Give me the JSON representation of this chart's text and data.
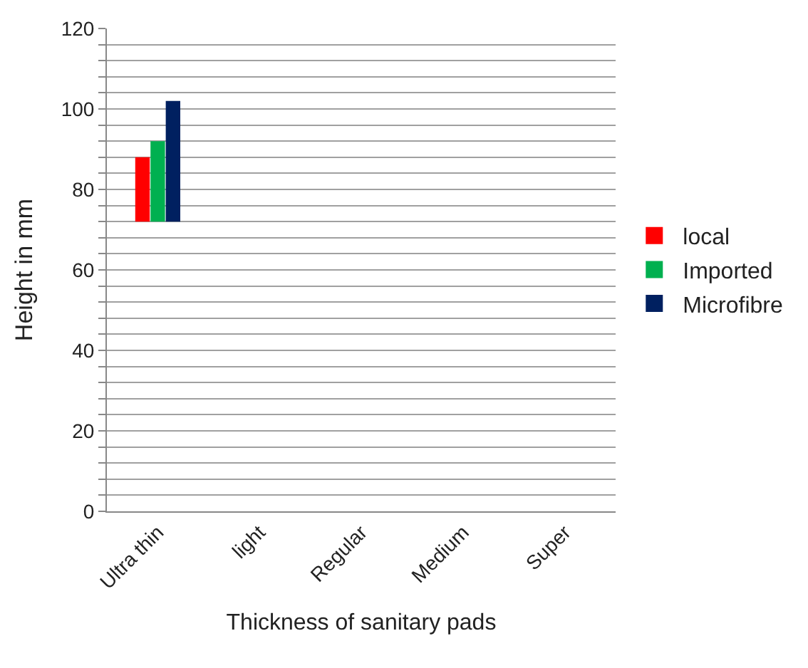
{
  "chart_data": {
    "type": "bar",
    "xlabel": "Thickness of sanitary pads",
    "ylabel": "Height in mm",
    "categories": [
      "Ultra thin",
      "light",
      "Regular",
      "Medium",
      "Super"
    ],
    "series": [
      {
        "name": "local",
        "color": "#ff0000",
        "values": [
          16,
          null,
          null,
          null,
          null
        ],
        "base": [
          72,
          null,
          null,
          null,
          null
        ]
      },
      {
        "name": "Imported",
        "color": "#00b050",
        "values": [
          20,
          null,
          null,
          null,
          null
        ],
        "base": [
          72,
          null,
          null,
          null,
          null
        ]
      },
      {
        "name": "Microfibre",
        "color": "#002060",
        "values": [
          30,
          null,
          null,
          null,
          null
        ],
        "base": [
          72,
          null,
          null,
          null,
          null
        ]
      }
    ],
    "ylim": [
      0,
      120
    ],
    "yticks": [
      0,
      {
        "value": 4,
        "label": null
      },
      {
        "value": 8,
        "label": null
      },
      {
        "value": 12,
        "label": null
      },
      {
        "value": 16,
        "label": null
      },
      20,
      {
        "value": 24,
        "label": null
      },
      {
        "value": 28,
        "label": null
      },
      {
        "value": 32,
        "label": null
      },
      {
        "value": 36,
        "label": null
      },
      40,
      {
        "value": 44,
        "label": null
      },
      {
        "value": 48,
        "label": null
      },
      {
        "value": 52,
        "label": null
      },
      {
        "value": 56,
        "label": null
      },
      60,
      {
        "value": 64,
        "label": null
      },
      {
        "value": 68,
        "label": null
      },
      {
        "value": 72,
        "label": null
      },
      {
        "value": 76,
        "label": null
      },
      80,
      {
        "value": 84,
        "label": null
      },
      {
        "value": 88,
        "label": null
      },
      {
        "value": 92,
        "label": null
      },
      {
        "value": 96,
        "label": null
      },
      100,
      {
        "value": 104,
        "label": null
      },
      {
        "value": 108,
        "label": null
      },
      {
        "value": 112,
        "label": null
      },
      {
        "value": 116,
        "label": null
      },
      120
    ],
    "grid": "y",
    "legend": "right"
  }
}
